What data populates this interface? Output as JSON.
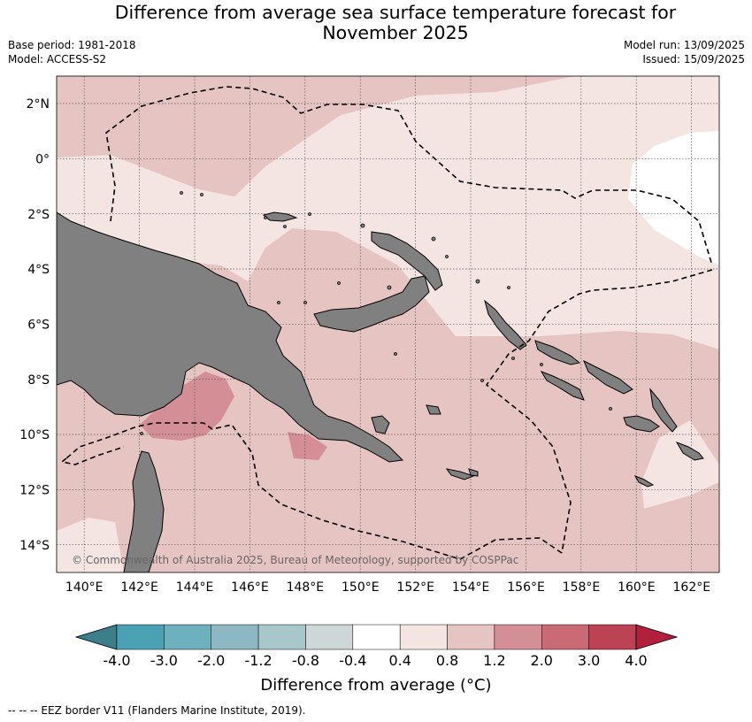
{
  "header": {
    "title_line1": "Difference from average sea surface temperature forecast for",
    "title_line2": "November 2025",
    "base_period": "Base period: 1981-2018",
    "model": "Model: ACCESS-S2",
    "model_run": "Model run: 13/09/2025",
    "issued": "Issued: 15/09/2025"
  },
  "map": {
    "lon_range": [
      139,
      163
    ],
    "lat_range": [
      -15,
      3
    ],
    "lat_ticks": [
      {
        "value": 2,
        "label": "2°N"
      },
      {
        "value": 0,
        "label": "0°"
      },
      {
        "value": -2,
        "label": "2°S"
      },
      {
        "value": -4,
        "label": "4°S"
      },
      {
        "value": -6,
        "label": "6°S"
      },
      {
        "value": -8,
        "label": "8°S"
      },
      {
        "value": -10,
        "label": "10°S"
      },
      {
        "value": -12,
        "label": "12°S"
      },
      {
        "value": -14,
        "label": "14°S"
      }
    ],
    "lon_ticks": [
      {
        "value": 140,
        "label": "140°E"
      },
      {
        "value": 142,
        "label": "142°E"
      },
      {
        "value": 144,
        "label": "144°E"
      },
      {
        "value": 146,
        "label": "146°E"
      },
      {
        "value": 148,
        "label": "148°E"
      },
      {
        "value": 150,
        "label": "150°E"
      },
      {
        "value": 152,
        "label": "152°E"
      },
      {
        "value": 154,
        "label": "154°E"
      },
      {
        "value": 156,
        "label": "156°E"
      },
      {
        "value": 158,
        "label": "158°E"
      },
      {
        "value": 160,
        "label": "160°E"
      },
      {
        "value": 162,
        "label": "162°E"
      }
    ],
    "gridlines": true,
    "land_color": "#808080",
    "copyright": "© Commonwealth of Australia 2025, Bureau of Meteorology, supported by COSPPac"
  },
  "colorbar": {
    "bounds": [
      "-4.0",
      "-3.0",
      "-2.0",
      "-1.2",
      "-0.8",
      "-0.4",
      "0.4",
      "0.8",
      "1.2",
      "2.0",
      "3.0",
      "4.0"
    ],
    "colors": [
      "#4aa1b3",
      "#6fb0be",
      "#8db8c2",
      "#a8c7cb",
      "#ced6d8",
      "#ffffff",
      "#f4e5e2",
      "#e6c4c1",
      "#d48e96",
      "#c96a74",
      "#bb4353"
    ],
    "under_color": "#3b7f8b",
    "over_color": "#b2203d",
    "title": "Difference from average (°C)"
  },
  "footer": {
    "legend_text": "-- -- -- EEZ border V11 (Flanders Marine Institute, 2019)."
  }
}
